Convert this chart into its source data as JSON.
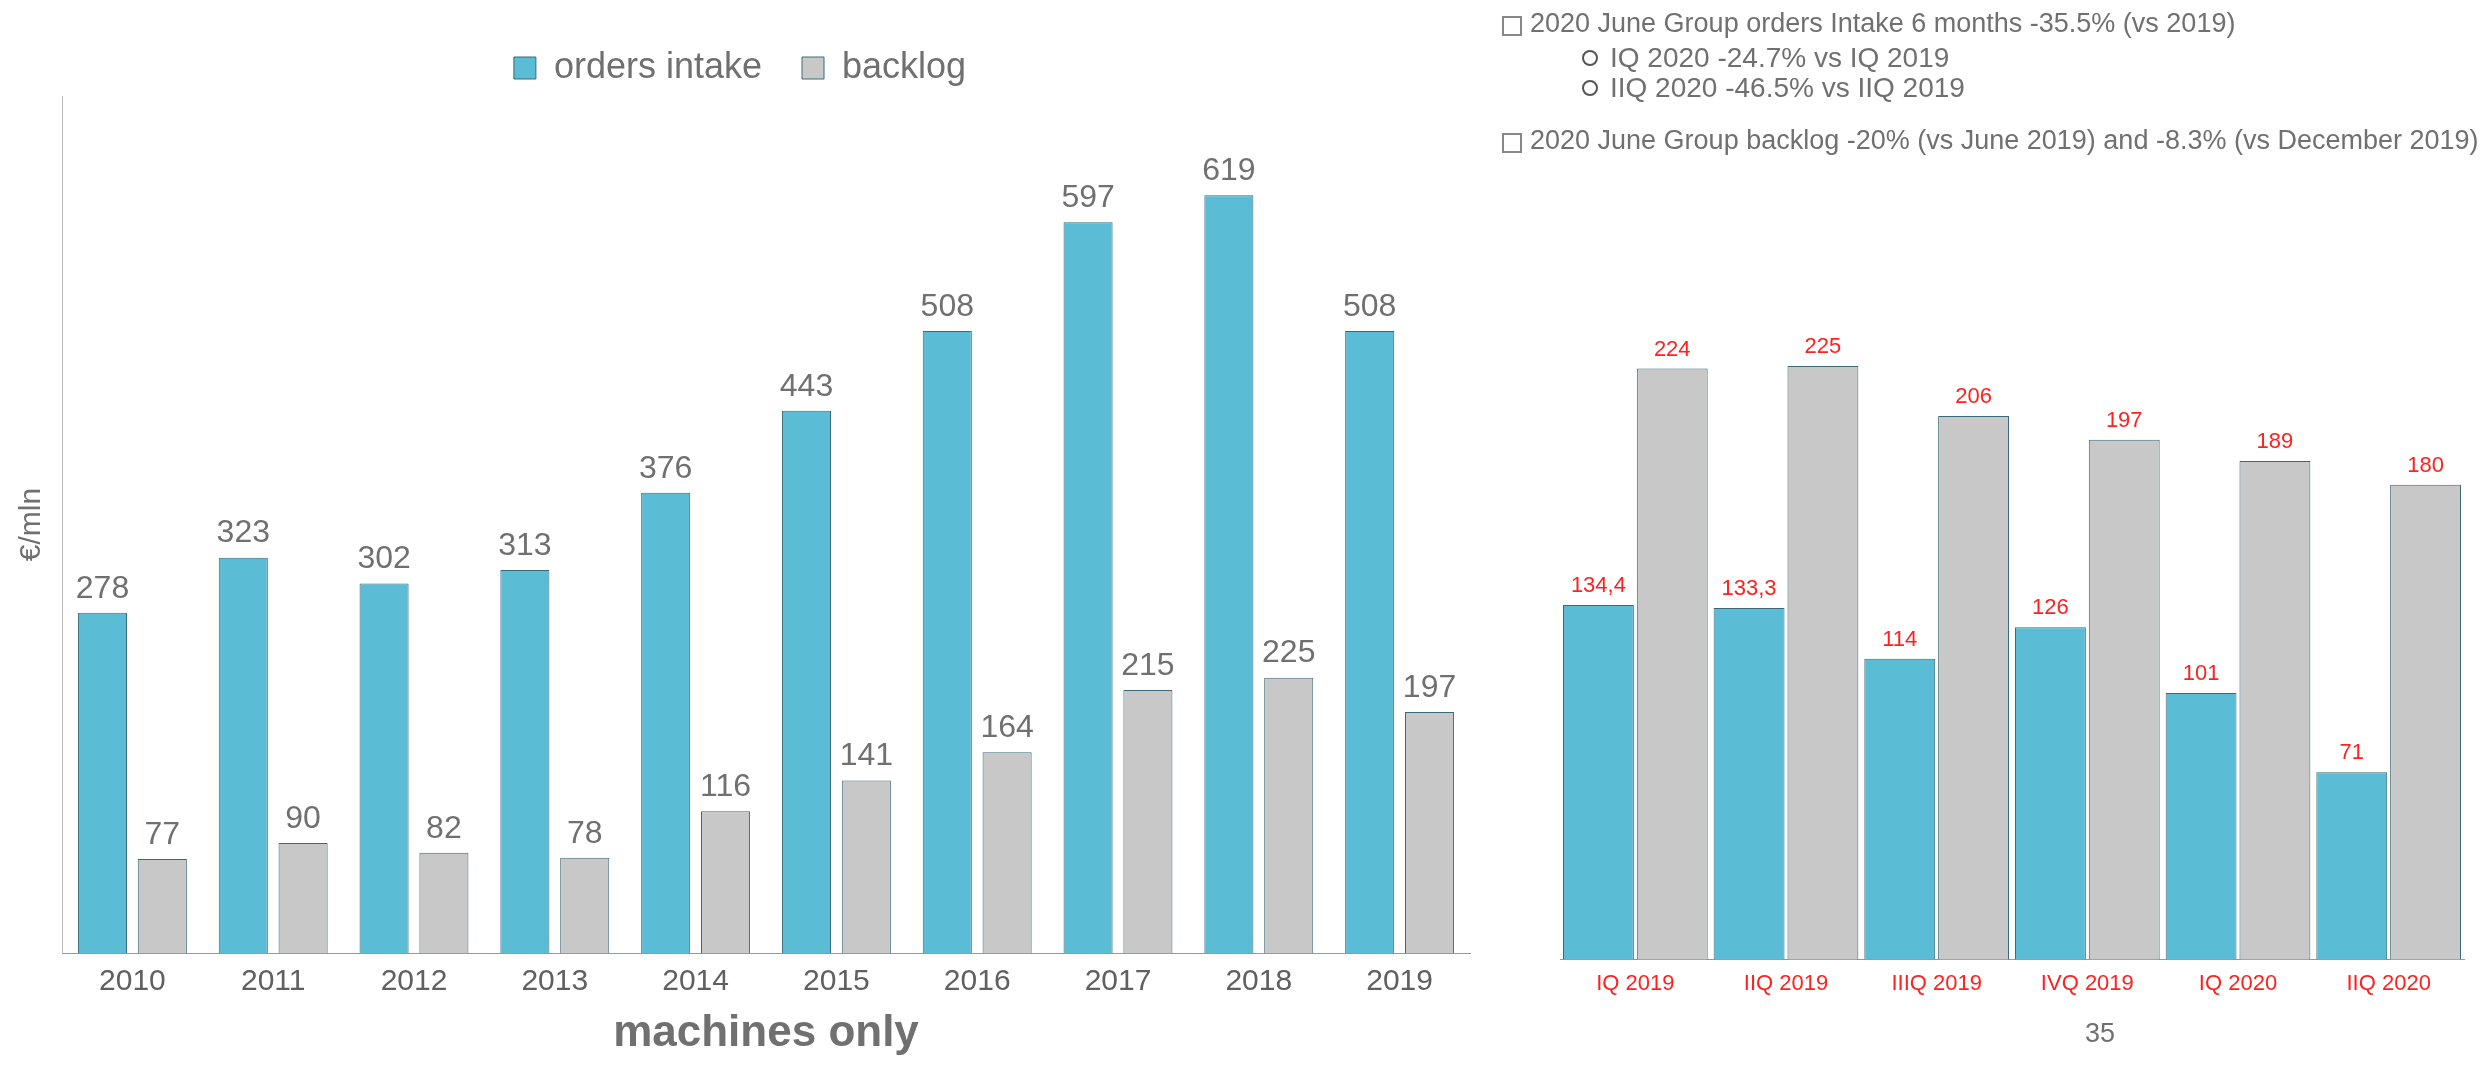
{
  "chart_data": [
    {
      "type": "bar",
      "categories": [
        "2010",
        "2011",
        "2012",
        "2013",
        "2014",
        "2015",
        "2016",
        "2017",
        "2018",
        "2019"
      ],
      "series": [
        {
          "name": "orders intake",
          "color": "#5bbcd6",
          "values": [
            278,
            323,
            302,
            313,
            376,
            443,
            508,
            597,
            619,
            508
          ]
        },
        {
          "name": "backlog",
          "color": "#c8c8c8",
          "values": [
            77,
            90,
            82,
            78,
            116,
            141,
            164,
            215,
            225,
            197
          ]
        }
      ],
      "xlabel": "machines only",
      "ylabel": "€/mln",
      "legend": "top",
      "data_labels": true,
      "tick_labels": "x"
    },
    {
      "type": "bar",
      "categories": [
        "IQ 2019",
        "IIQ 2019",
        "IIIQ 2019",
        "IVQ 2019",
        "IQ 2020",
        "IIQ 2020"
      ],
      "series": [
        {
          "color": "#5bbcd6",
          "values": [
            134.4,
            133.3,
            114,
            126,
            101,
            71
          ],
          "value_labels": [
            "134,4",
            "133,3",
            "114",
            "126",
            "101",
            "71"
          ]
        },
        {
          "color": "#c8c8c8",
          "values": [
            224,
            225,
            206,
            197,
            189,
            180
          ],
          "value_labels": [
            "224",
            "225",
            "206",
            "197",
            "189",
            "180"
          ]
        }
      ],
      "tick_labels": "x",
      "annotations": [
        "2020 June Group orders Intake 6 months -35.5% (vs 2019)",
        "IQ 2020 -24.7% vs  IQ 2019",
        "IIQ 2020 -46.5% vs IIQ 2019",
        "2020 June Group backlog -20% (vs June 2019) and -8.3% (vs December 2019)",
        "35"
      ]
    }
  ]
}
